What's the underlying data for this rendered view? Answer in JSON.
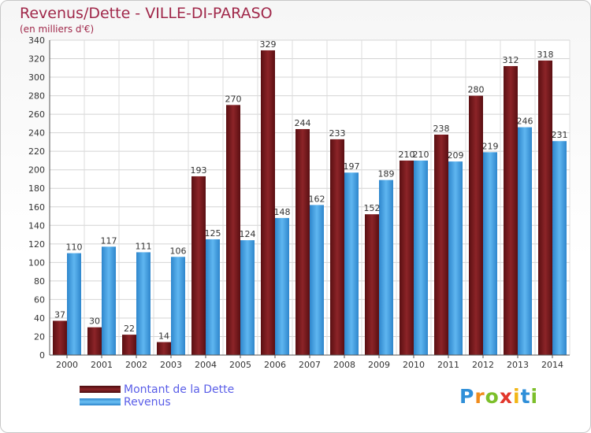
{
  "header": {
    "title": "Revenus/Dette - VILLE-DI-PARASO",
    "subtitle": "(en milliers d'€)"
  },
  "colors": {
    "dette": "#7a1a1e",
    "revenus": "#4ea8e8",
    "accent": "#a0284a",
    "legend_text": "#5a5ee8"
  },
  "legend": {
    "items": [
      {
        "label": "Montant de la Dette",
        "color": "#7a1a1e"
      },
      {
        "label": "Revenus",
        "color": "#4ea8e8"
      }
    ]
  },
  "logo": {
    "text": "Proxiti"
  },
  "chart_data": {
    "type": "bar",
    "title": "Revenus/Dette - VILLE-DI-PARASO",
    "subtitle": "(en milliers d'€)",
    "categories": [
      "2000",
      "2001",
      "2002",
      "2003",
      "2004",
      "2005",
      "2006",
      "2007",
      "2008",
      "2009",
      "2010",
      "2011",
      "2012",
      "2013",
      "2014"
    ],
    "series": [
      {
        "name": "Montant de la Dette",
        "values": [
          37,
          30,
          22,
          14,
          193,
          270,
          329,
          244,
          233,
          152,
          210,
          238,
          280,
          312,
          318
        ]
      },
      {
        "name": "Revenus",
        "values": [
          110,
          117,
          111,
          106,
          125,
          124,
          148,
          162,
          197,
          189,
          210,
          209,
          219,
          246,
          231
        ]
      }
    ],
    "ylim": [
      0,
      340
    ],
    "yticks": [
      0,
      20,
      40,
      60,
      80,
      100,
      120,
      140,
      160,
      180,
      200,
      220,
      240,
      260,
      280,
      300,
      320,
      340
    ],
    "grid": true,
    "legend_position": "bottom-left"
  }
}
